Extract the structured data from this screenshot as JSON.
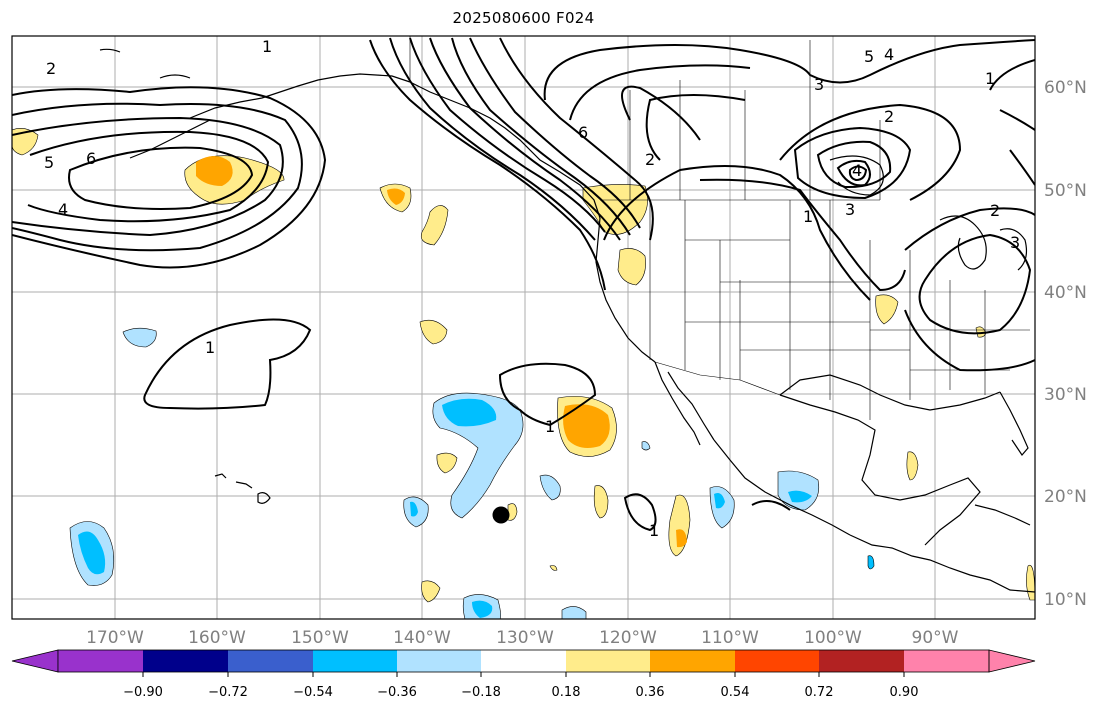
{
  "title": "2025080600 F024",
  "longitude_labels": [
    "170°W",
    "160°W",
    "150°W",
    "140°W",
    "130°W",
    "120°W",
    "110°W",
    "100°W",
    "90°W"
  ],
  "latitude_labels": [
    "60°N",
    "50°N",
    "40°N",
    "30°N",
    "20°N",
    "10°N"
  ],
  "contour_labels": [
    "1",
    "2",
    "5",
    "6",
    "4",
    "1",
    "6",
    "2",
    "1",
    "5",
    "4",
    "3",
    "2",
    "3",
    "1",
    "1",
    "4",
    "3",
    "1",
    "2"
  ],
  "colorbar": {
    "ticks": [
      "−0.90",
      "−0.72",
      "−0.54",
      "−0.36",
      "−0.18",
      "0.18",
      "0.36",
      "0.54",
      "0.72",
      "0.90"
    ],
    "colors": [
      "#9932cc",
      "#00008b",
      "#3a5fcd",
      "#00bfff",
      "#b0e2ff",
      "#ffffff",
      "#ffec8b",
      "#ffa500",
      "#ff4500",
      "#b22222",
      "#ff82ab"
    ]
  },
  "colors": {
    "positive_light": "#ffec8b",
    "positive_mid": "#ffa500",
    "negative_light": "#b0e2ff",
    "negative_mid": "#00bfff",
    "grid": "#999999",
    "contour": "#000000"
  },
  "marker": "storm-center-dot"
}
